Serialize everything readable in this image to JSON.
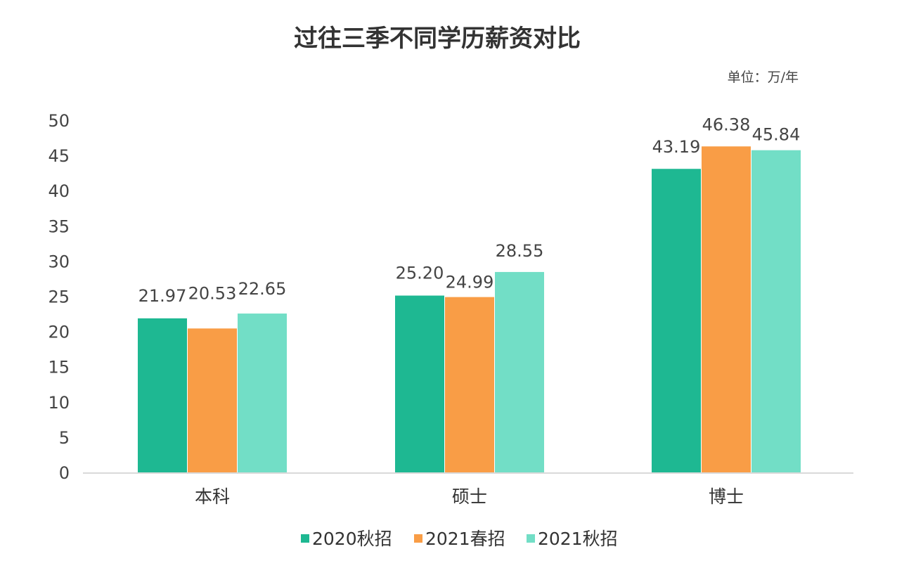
{
  "chart_data": {
    "type": "bar",
    "title": "过往三季不同学历薪资对比",
    "unit_note": "单位：万/年",
    "categories": [
      "本科",
      "硕士",
      "博士"
    ],
    "series": [
      {
        "name": "2020秋招",
        "color": "#1eb892",
        "values": [
          21.97,
          25.2,
          43.19
        ],
        "labels": [
          "21.97",
          "25.20",
          "43.19"
        ]
      },
      {
        "name": "2021春招",
        "color": "#f99d46",
        "values": [
          20.53,
          24.99,
          46.38
        ],
        "labels": [
          "20.53",
          "24.99",
          "46.38"
        ]
      },
      {
        "name": "2021秋招",
        "color": "#72dec6",
        "values": [
          22.65,
          28.55,
          45.84
        ],
        "labels": [
          "22.65",
          "28.55",
          "45.84"
        ]
      }
    ],
    "y_ticks": [
      0,
      5,
      10,
      15,
      20,
      25,
      30,
      35,
      40,
      45,
      50
    ],
    "ylim": [
      0,
      50
    ],
    "grid": false,
    "legend_position": "bottom"
  }
}
